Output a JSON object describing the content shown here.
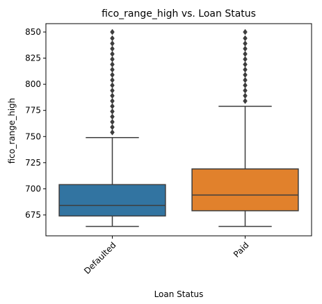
{
  "chart_data": {
    "type": "box",
    "title": "fico_range_high vs. Loan Status",
    "xlabel": "Loan Status",
    "ylabel": "fico_range_high",
    "ylim": [
      655,
      858
    ],
    "yticks": [
      675,
      700,
      725,
      750,
      775,
      800,
      825,
      850
    ],
    "categories": [
      "Defaulted",
      "Paid"
    ],
    "grid": false,
    "series": [
      {
        "category": "Defaulted",
        "color": "#3274a1",
        "whisker_low": 664,
        "q1": 674,
        "median": 684,
        "q3": 704,
        "whisker_high": 749,
        "outliers": [
          754,
          759,
          764,
          769,
          774,
          779,
          784,
          789,
          794,
          799,
          804,
          809,
          814,
          819,
          824,
          829,
          834,
          839,
          844,
          850
        ]
      },
      {
        "category": "Paid",
        "color": "#e1812c",
        "whisker_low": 664,
        "q1": 679,
        "median": 694,
        "q3": 719,
        "whisker_high": 779,
        "outliers": [
          784,
          789,
          794,
          799,
          804,
          809,
          814,
          819,
          824,
          829,
          834,
          839,
          844,
          850
        ]
      }
    ]
  }
}
